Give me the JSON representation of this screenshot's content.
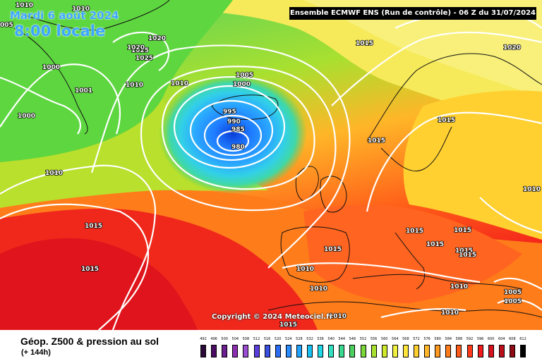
{
  "header": {
    "date": "Mardi 6 août 2024",
    "local_time": "8:00 locale",
    "run_info": "Ensemble ECMWF ENS  (Run de contrôle)  - 06 Z du 31/07/2024"
  },
  "map": {
    "copyright": "Copyright © 2024 Meteociel.fr",
    "field": "Géop. Z500",
    "isobar_labels": [
      "1010",
      "1010",
      "005",
      "1020",
      "1025",
      "1020",
      "1025",
      "1000",
      "1001",
      "1000",
      "1010",
      "1010",
      "1005",
      "1000",
      "995",
      "990",
      "985",
      "980",
      "1010",
      "1015",
      "1020",
      "1015",
      "1015",
      "1015",
      "1015",
      "1010",
      "1015",
      "1015",
      "1015",
      "1015",
      "1010",
      "1010",
      "1010",
      "1010",
      "1010",
      "1005",
      "1005",
      "1015",
      "1015",
      "1015"
    ]
  },
  "footer": {
    "title": "Géop. Z500 & pression au sol",
    "forecast_hours": "(+ 144h)"
  },
  "legend": {
    "labels": [
      "492",
      "496",
      "500",
      "504",
      "508",
      "512",
      "516",
      "520",
      "524",
      "528",
      "532",
      "536",
      "540",
      "544",
      "548",
      "552",
      "556",
      "560",
      "564",
      "568",
      "572",
      "576",
      "580",
      "584",
      "588",
      "592",
      "596",
      "600",
      "604",
      "608",
      "612"
    ],
    "colors": [
      "#2b0a3a",
      "#4a0d63",
      "#6c1f8e",
      "#8a2eb0",
      "#9b4fd0",
      "#5a3ddb",
      "#3b4fe0",
      "#2c6cf0",
      "#2a8cff",
      "#1fa3ff",
      "#18bff5",
      "#20d8e8",
      "#30e0c0",
      "#3ad890",
      "#4dd060",
      "#7cd83a",
      "#a8e030",
      "#d0e82e",
      "#f0f040",
      "#ffe63c",
      "#ffd030",
      "#ffb628",
      "#ff9a20",
      "#ff7c1a",
      "#ff5a18",
      "#ff3a1a",
      "#f21c1c",
      "#d8121c",
      "#b80f1a",
      "#8f0c16",
      "#000000"
    ]
  }
}
